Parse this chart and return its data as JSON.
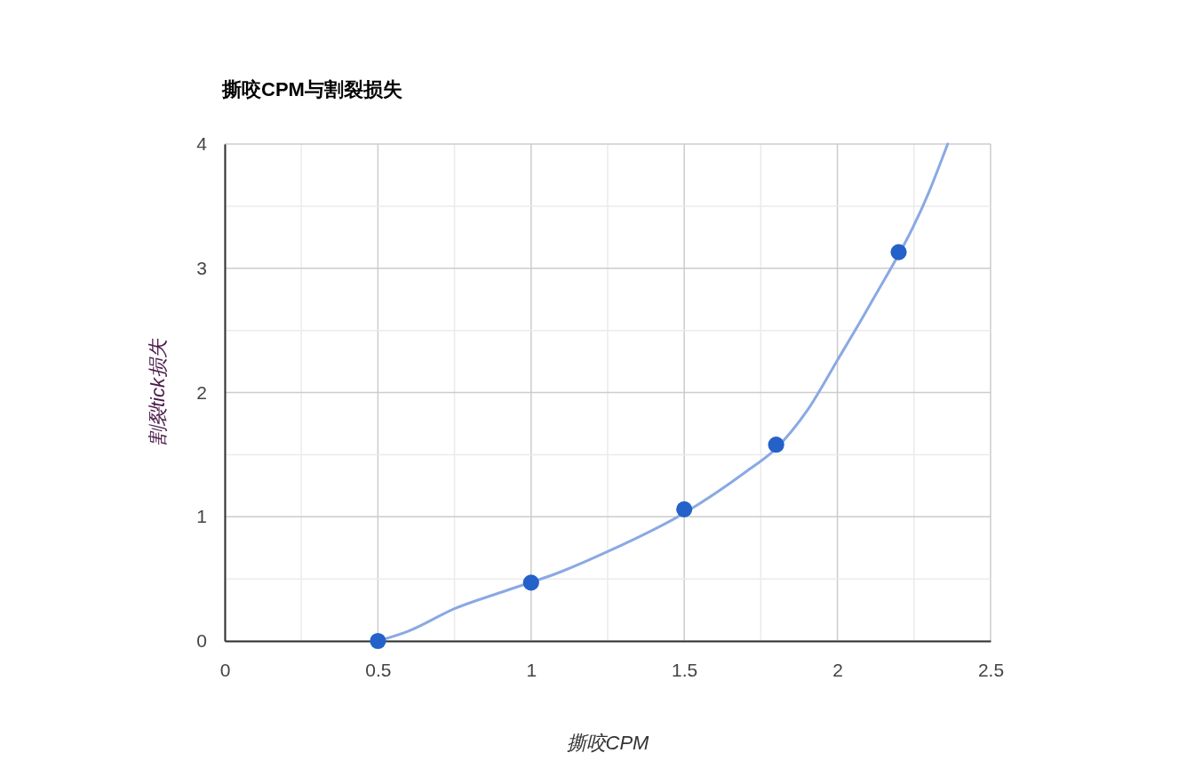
{
  "chart_data": {
    "type": "scatter",
    "title": "撕咬CPM与割裂损失",
    "xlabel": "撕咬CPM",
    "ylabel": "割裂tick损失",
    "x": [
      0.5,
      1,
      1.5,
      1.8,
      2.2
    ],
    "series": [
      {
        "type": "line",
        "marker": "none",
        "color": "#8aa9e3",
        "x": [
          0.5,
          0.6,
          0.75,
          0.9,
          1.1,
          1.25,
          1.5,
          1.7,
          1.8,
          1.9,
          2.0,
          2.1,
          2.3,
          2.36
        ],
        "values": [
          0,
          0.08,
          0.26,
          0.39,
          0.56,
          0.72,
          1.03,
          1.36,
          1.55,
          1.85,
          2.26,
          2.68,
          3.62,
          4.0
        ]
      },
      {
        "color": "#2461c9",
        "values": [
          0,
          0.47,
          1.06,
          1.58,
          3.13
        ]
      }
    ],
    "xlim": [
      0,
      2.5
    ],
    "ylim": [
      0,
      4
    ],
    "xticks": [
      0,
      {
        "value": 0.25,
        "label": null
      },
      0.5,
      {
        "value": 0.75,
        "label": null
      },
      1,
      {
        "value": 1.25,
        "label": null
      },
      1.5,
      {
        "value": 1.75,
        "label": null
      },
      2,
      {
        "value": 2.25,
        "label": null
      },
      2.5
    ],
    "yticks": [
      0,
      {
        "value": 0.5,
        "label": null
      },
      1,
      {
        "value": 1.5,
        "label": null
      },
      2,
      {
        "value": 2.5,
        "label": null
      },
      3,
      {
        "value": 3.5,
        "label": null
      },
      4
    ],
    "grid": true,
    "marker": "circle"
  }
}
